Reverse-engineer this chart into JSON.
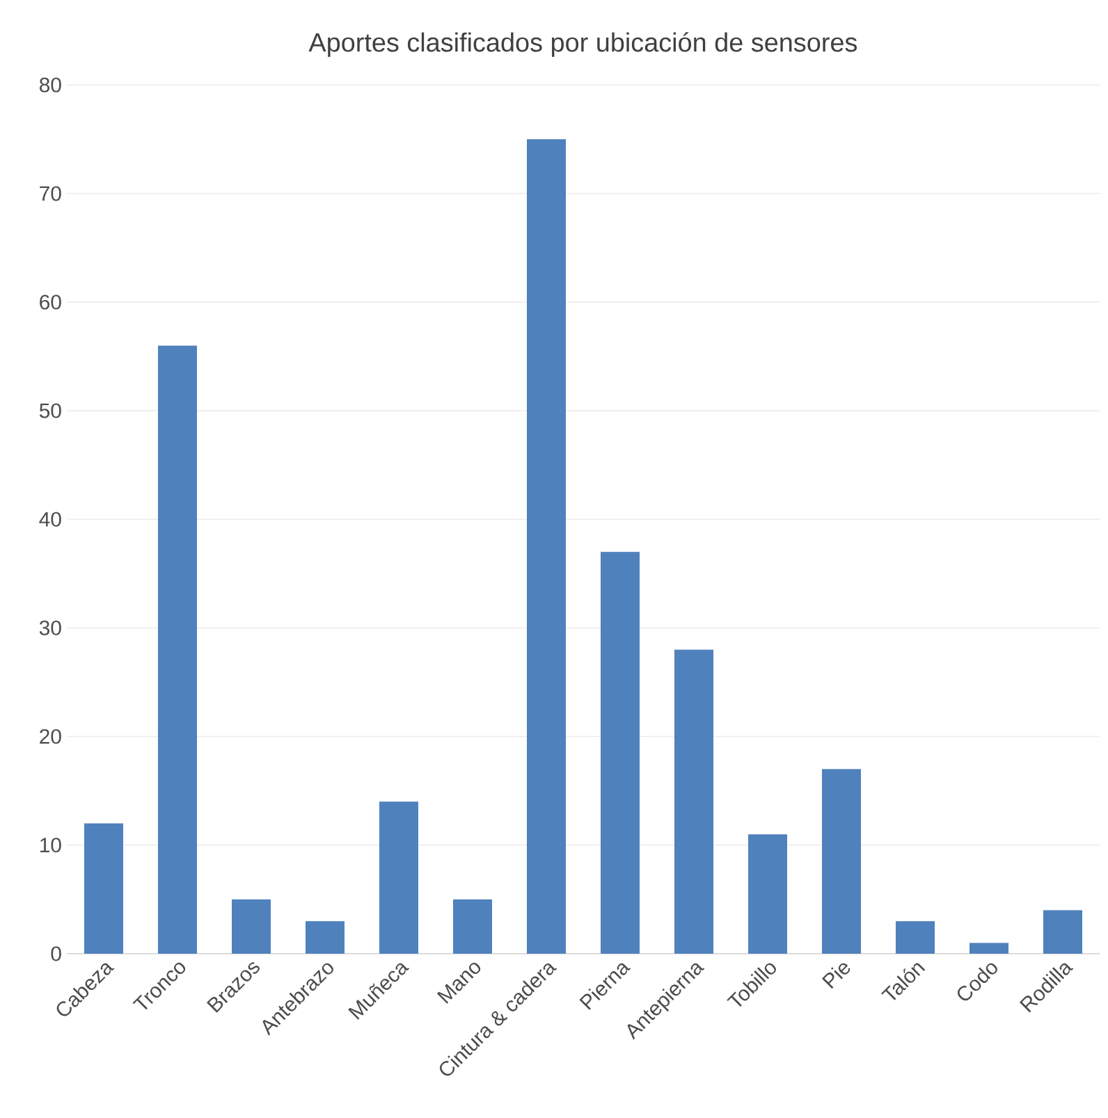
{
  "chart_data": {
    "type": "bar",
    "title": "Aportes clasificados por ubicación de sensores",
    "categories": [
      "Cabeza",
      "Tronco",
      "Brazos",
      "Antebrazo",
      "Muñeca",
      "Mano",
      "Cintura & cadera",
      "Pierna",
      "Antepierna",
      "Tobillo",
      "Pie",
      "Talón",
      "Codo",
      "Rodilla"
    ],
    "values": [
      12,
      56,
      5,
      3,
      14,
      5,
      75,
      37,
      28,
      11,
      17,
      3,
      1,
      4
    ],
    "color": "#4f81bd",
    "ylim": [
      0,
      80
    ],
    "yticks": [
      0,
      10,
      20,
      30,
      40,
      50,
      60,
      70,
      80
    ],
    "grid": "y"
  }
}
